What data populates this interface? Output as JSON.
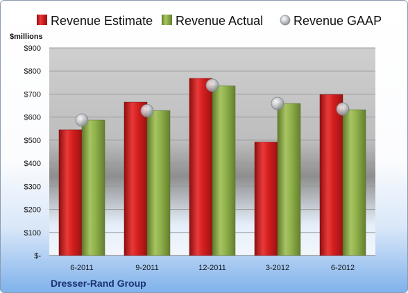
{
  "chart_data": {
    "type": "bar",
    "title": "",
    "ylabel": "$millions",
    "xlabel": "",
    "company": "Dresser-Rand Group",
    "categories": [
      "6-2011",
      "9-2011",
      "12-2011",
      "3-2012",
      "6-2012"
    ],
    "ylim": [
      0,
      900
    ],
    "yticks": [
      {
        "value": 0,
        "label": "$-"
      },
      {
        "value": 100,
        "label": "$100"
      },
      {
        "value": 200,
        "label": "$200"
      },
      {
        "value": 300,
        "label": "$300"
      },
      {
        "value": 400,
        "label": "$400"
      },
      {
        "value": 500,
        "label": "$500"
      },
      {
        "value": 600,
        "label": "$600"
      },
      {
        "value": 700,
        "label": "$700"
      },
      {
        "value": 800,
        "label": "$800"
      },
      {
        "value": 900,
        "label": "$900"
      }
    ],
    "series": [
      {
        "name": "Revenue Estimate",
        "kind": "bar",
        "color": "#d41e1e",
        "values": [
          545,
          665,
          768,
          492,
          698
        ]
      },
      {
        "name": "Revenue Actual",
        "kind": "bar",
        "color": "#8fb04a",
        "values": [
          587,
          628,
          735,
          659,
          632
        ]
      },
      {
        "name": "Revenue GAAP",
        "kind": "marker",
        "color": "#b8bcc2",
        "values": [
          587,
          628,
          738,
          659,
          635
        ]
      }
    ],
    "grid": true,
    "legend": "top"
  }
}
